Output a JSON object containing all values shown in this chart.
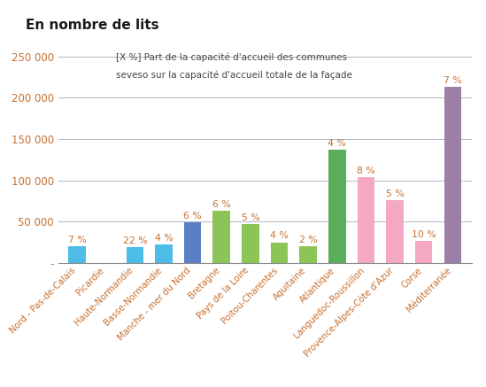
{
  "title": "En nombre de lits",
  "annotation_line1": "[X %] Part de la capacité d'accueil des communes",
  "annotation_line2": "seveso sur la capacité d'accueil totale de la façade",
  "categories": [
    "Nord - Pas-de-Calais",
    "Picardie",
    "Haute-Normandie",
    "Basse-Normandie",
    "Manche - mer du Nord",
    "Bretagne",
    "Pays de la Loire",
    "Poitou-Charentes",
    "Aquitaine",
    "Atlantique",
    "Languedoc-Roussillon",
    "Provence-Alpes-Côte d'Azur",
    "Corse",
    "Méditerranée"
  ],
  "values": [
    20500,
    0,
    19500,
    22500,
    49000,
    63000,
    47000,
    25000,
    20000,
    137000,
    104000,
    76000,
    27000,
    213000
  ],
  "percentages": [
    "7 %",
    "",
    "22 %",
    "4 %",
    "6 %",
    "6 %",
    "5 %",
    "4 %",
    "2 %",
    "4 %",
    "8 %",
    "5 %",
    "10 %",
    "7 %"
  ],
  "bar_colors": [
    "#4dbde8",
    "#ffffff",
    "#4dbde8",
    "#4dbde8",
    "#5b7fc4",
    "#8dc458",
    "#8dc458",
    "#8dc458",
    "#8dc458",
    "#5aad5a",
    "#f4a8c4",
    "#f4a8c4",
    "#f4a8c4",
    "#9b7fa6"
  ],
  "ylim": [
    0,
    262000
  ],
  "yticks": [
    0,
    50000,
    100000,
    150000,
    200000,
    250000
  ],
  "ytick_labels": [
    "-",
    "50 000",
    "100 000",
    "150 000",
    "200 000",
    "250 000"
  ],
  "ytick_color": "#c87030",
  "grid_color": "#b0b8c8",
  "xlabel_color": "#c87030",
  "pct_color": "#c87030",
  "title_color": "#1a1a1a"
}
